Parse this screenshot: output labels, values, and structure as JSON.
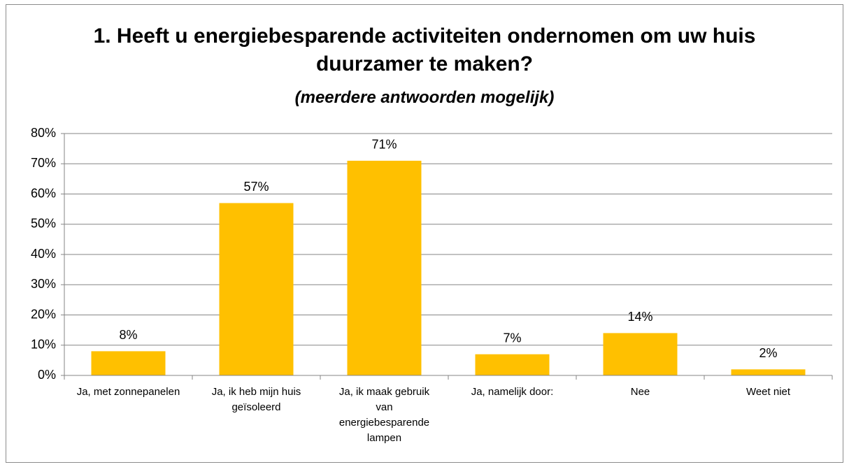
{
  "chart_data": {
    "type": "bar",
    "title": "1. Heeft u energiebesparende activiteiten ondernomen om uw huis duurzamer te maken?",
    "subtitle": "(meerdere antwoorden mogelijk)",
    "categories": [
      "Ja, met zonnepanelen",
      "Ja, ik heb mijn huis geïsoleerd",
      "Ja, ik maak gebruik van energiebesparende lampen",
      "Ja, namelijk door:",
      "Nee",
      "Weet niet"
    ],
    "values": [
      8,
      57,
      71,
      7,
      14,
      2
    ],
    "value_labels": [
      "8%",
      "57%",
      "71%",
      "7%",
      "14%",
      "2%"
    ],
    "color": "#ffc000",
    "ylim": [
      0,
      80
    ],
    "yticks": [
      {
        "value": 0,
        "label": "0%"
      },
      {
        "value": 10,
        "label": "10%"
      },
      {
        "value": 20,
        "label": "20%"
      },
      {
        "value": 30,
        "label": "30%"
      },
      {
        "value": 40,
        "label": "40%"
      },
      {
        "value": 50,
        "label": "50%"
      },
      {
        "value": 60,
        "label": "60%"
      },
      {
        "value": 70,
        "label": "70%"
      },
      {
        "value": 80,
        "label": "80%"
      }
    ],
    "grid": true
  }
}
